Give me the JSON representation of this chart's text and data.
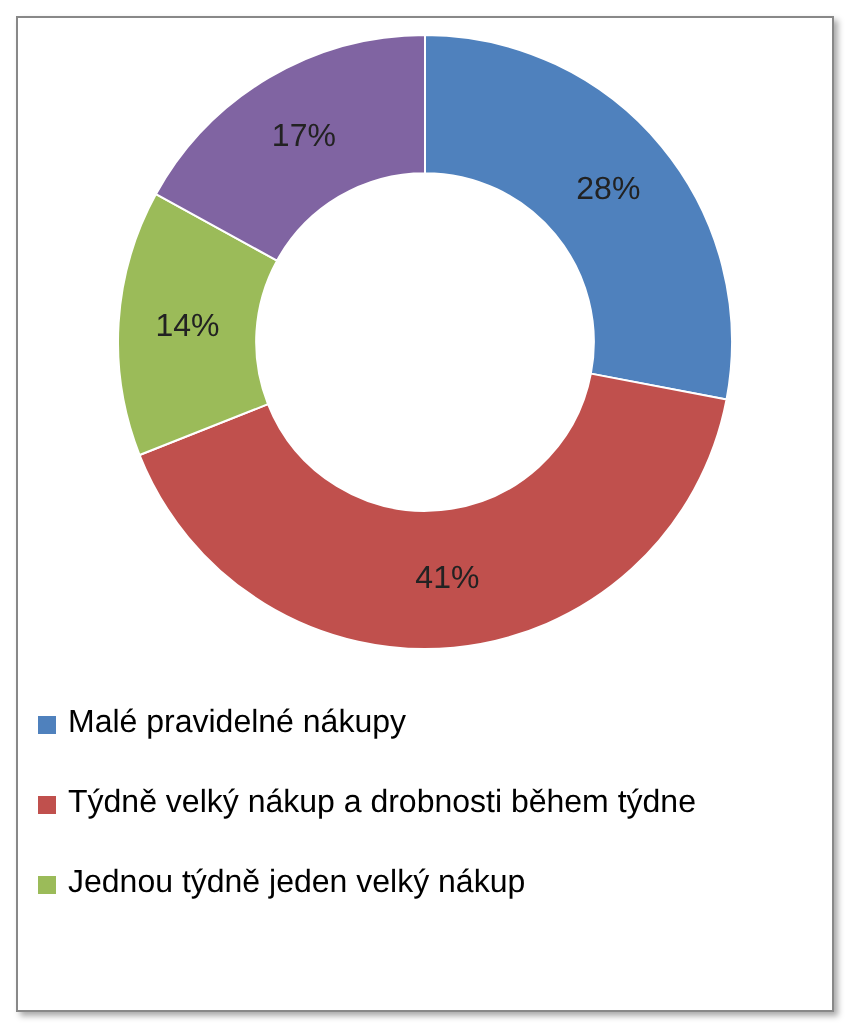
{
  "chart_data": {
    "type": "donut",
    "categories": [
      "Malé pravidelné nákupy",
      "Týdně velký nákup a drobnosti během týdne",
      "Jednou týdně jeden velký nákup",
      null
    ],
    "values": [
      28,
      41,
      14,
      17
    ],
    "colors": [
      "#4f81bd",
      "#c0504d",
      "#9bbb59",
      "#8064a2"
    ],
    "value_labels": [
      "28%",
      "41%",
      "14%",
      "17%"
    ],
    "legend": "bottom"
  }
}
